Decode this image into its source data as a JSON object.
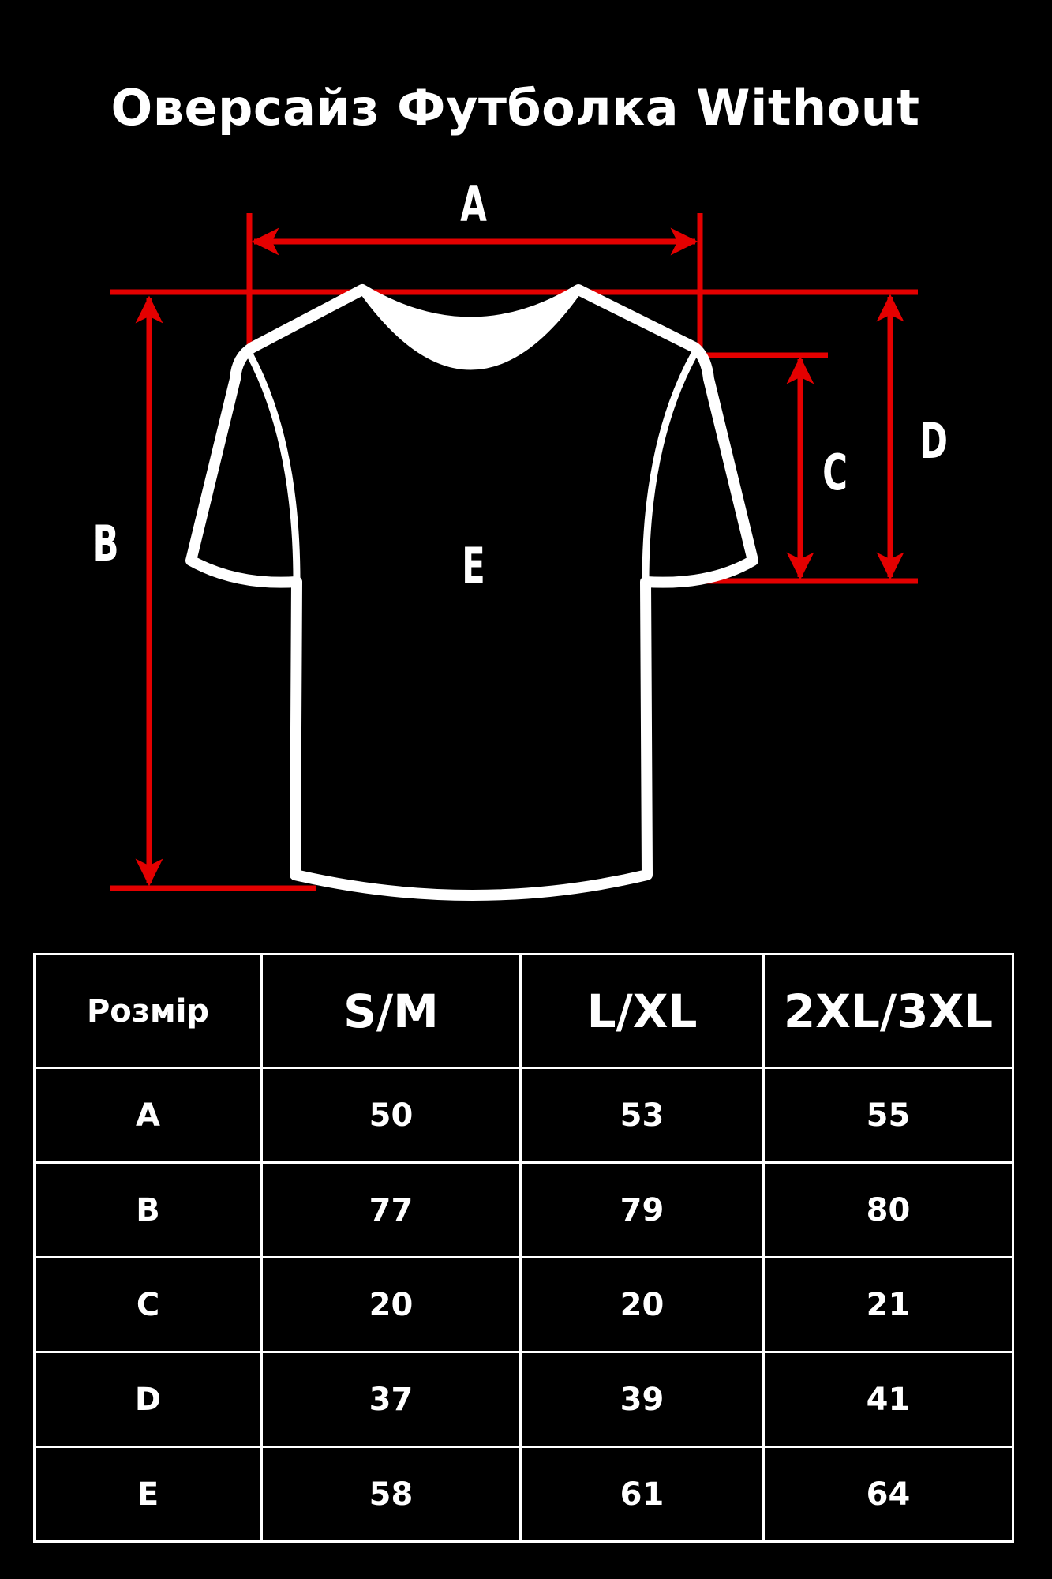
{
  "title": "Оверсайз Футболка Without",
  "colors": {
    "background": "#000000",
    "measure_lines": "#e40000",
    "outline": "#ffffff"
  },
  "diagram": {
    "labels": {
      "A": "A",
      "B": "B",
      "C": "C",
      "D": "D",
      "E": "E"
    }
  },
  "table": {
    "header": [
      "Розмір",
      "S/M",
      "L/XL",
      "2XL/3XL"
    ],
    "rows": [
      {
        "label": "A",
        "values": [
          "50",
          "53",
          "55"
        ]
      },
      {
        "label": "B",
        "values": [
          "77",
          "79",
          "80"
        ]
      },
      {
        "label": "C",
        "values": [
          "20",
          "20",
          "21"
        ]
      },
      {
        "label": "D",
        "values": [
          "37",
          "39",
          "41"
        ]
      },
      {
        "label": "E",
        "values": [
          "58",
          "61",
          "64"
        ]
      }
    ]
  }
}
